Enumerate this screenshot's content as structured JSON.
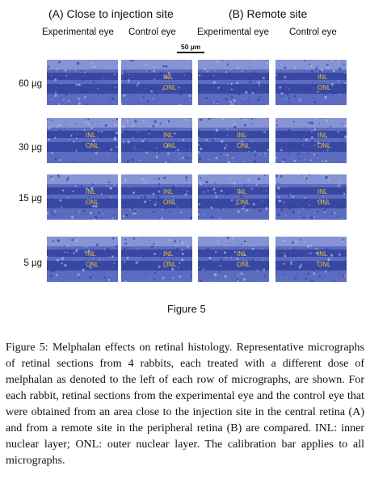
{
  "figure": {
    "group_a_title": "(A) Close to injection site",
    "group_b_title": "(B) Remote site",
    "columns": [
      "Experimental eye",
      "Control eye",
      "Experimental eye",
      "Control eye"
    ],
    "scale_bar_label": "50 µm",
    "rows": [
      {
        "dose": "60 µg"
      },
      {
        "dose": "30 µg"
      },
      {
        "dose": "15 µg"
      },
      {
        "dose": "5 µg"
      }
    ],
    "layer_labels": {
      "inl": "INL",
      "onl": "ONL"
    },
    "figure_label": "Figure 5",
    "colors": {
      "stain_dark": "#2f3f9a",
      "stain_mid": "#5b6cc0",
      "stain_light": "#a9b6e6",
      "layer_label": "#e8c43a"
    }
  },
  "caption": {
    "head": "Figure 5:",
    "body": "Melphalan effects on retinal histology. Representative micrographs of retinal sections from 4 rabbits, each treated with a different dose of melphalan as denoted to the left of each row of micrographs, are shown. For each rabbit, retinal sections from the experimental eye and the control eye that were obtained from an area close to the injection site in the central retina (A) and from a remote site in the peripheral retina (B) are compared. INL: inner nuclear layer; ONL: outer nuclear layer. The calibration bar applies to all micrographs."
  }
}
